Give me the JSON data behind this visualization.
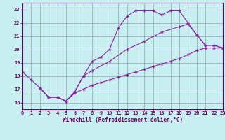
{
  "background_color": "#c8f0f0",
  "grid_color": "#9999bb",
  "line_color": "#882299",
  "xlim": [
    0,
    23
  ],
  "ylim": [
    15.5,
    23.5
  ],
  "xticks": [
    0,
    1,
    2,
    3,
    4,
    5,
    6,
    7,
    8,
    9,
    10,
    11,
    12,
    13,
    14,
    15,
    16,
    17,
    18,
    19,
    20,
    21,
    22,
    23
  ],
  "yticks": [
    16,
    17,
    18,
    19,
    20,
    21,
    22,
    23
  ],
  "xlabel": "Windchill (Refroidissement éolien,°C)",
  "curve1_x": [
    0,
    1,
    2,
    3,
    4,
    5,
    6,
    7,
    8,
    9,
    10,
    11,
    12,
    13,
    14,
    15,
    16,
    17,
    18,
    19,
    20,
    21,
    22,
    23
  ],
  "curve1_y": [
    18.3,
    17.7,
    17.1,
    16.4,
    16.4,
    16.1,
    16.8,
    18.0,
    19.1,
    19.4,
    20.0,
    21.6,
    22.5,
    22.9,
    22.9,
    22.9,
    22.6,
    22.9,
    22.9,
    22.0,
    21.1,
    20.3,
    20.3,
    20.1
  ],
  "curve2_x": [
    2,
    3,
    4,
    5,
    6,
    7,
    8,
    10,
    12,
    14,
    16,
    18,
    19,
    20,
    21,
    22,
    23
  ],
  "curve2_y": [
    17.1,
    16.4,
    16.4,
    16.1,
    16.8,
    18.0,
    18.4,
    19.1,
    20.0,
    20.6,
    21.3,
    21.7,
    21.9,
    21.1,
    20.3,
    20.3,
    20.1
  ],
  "curve3_x": [
    2,
    3,
    4,
    5,
    6,
    7,
    8,
    9,
    10,
    11,
    12,
    13,
    14,
    15,
    16,
    17,
    18,
    19,
    20,
    21,
    22,
    23
  ],
  "curve3_y": [
    17.1,
    16.4,
    16.4,
    16.1,
    16.7,
    17.0,
    17.3,
    17.5,
    17.7,
    17.9,
    18.1,
    18.3,
    18.5,
    18.7,
    18.9,
    19.1,
    19.3,
    19.6,
    19.9,
    20.1,
    20.1,
    20.1
  ]
}
